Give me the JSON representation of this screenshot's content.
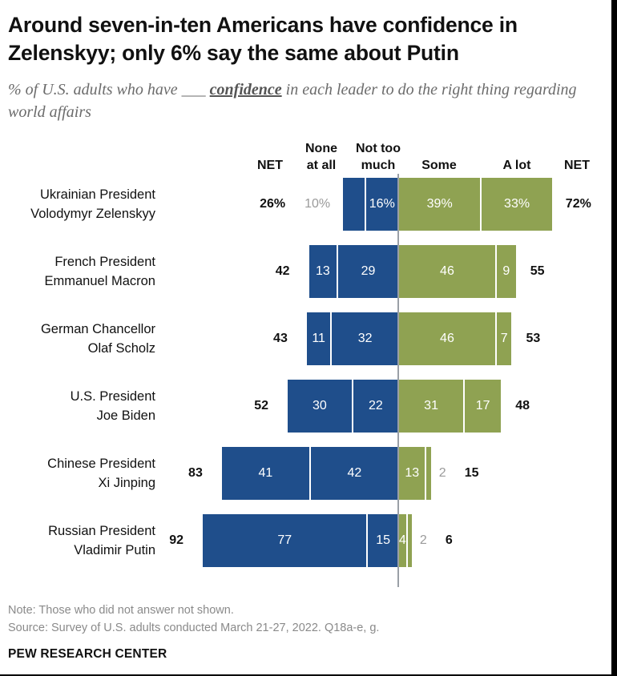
{
  "title": "Around seven-in-ten Americans have confidence in Zelenskyy; only 6% say the same about Putin",
  "subtitle_pre": "% of U.S. adults who have",
  "subtitle_blank": "___",
  "subtitle_conf": "confidence",
  "subtitle_post": "in each leader to do the right thing regarding world affairs",
  "headers": {
    "net_left": "NET",
    "none": "None at all",
    "not_too": "Not too much",
    "some": "Some",
    "a_lot": "A lot",
    "net_right": "NET"
  },
  "colors": {
    "negative": "#1f4e8b",
    "positive": "#8fa252"
  },
  "chart_data": {
    "type": "bar",
    "orientation": "horizontal-diverging",
    "categories": [
      "Ukrainian President Volodymyr Zelenskyy",
      "French President Emmanuel Macron",
      "German Chancellor Olaf Scholz",
      "U.S. President Joe Biden",
      "Chinese President Xi Jinping",
      "Russian President Vladimir Putin"
    ],
    "series": [
      {
        "name": "None at all",
        "values": [
          10,
          13,
          11,
          30,
          41,
          77
        ]
      },
      {
        "name": "Not too much",
        "values": [
          16,
          29,
          32,
          22,
          42,
          15
        ]
      },
      {
        "name": "Some",
        "values": [
          39,
          46,
          46,
          31,
          13,
          4
        ]
      },
      {
        "name": "A lot",
        "values": [
          33,
          9,
          7,
          17,
          2,
          2
        ]
      }
    ],
    "net_negative": [
      26,
      42,
      43,
      52,
      83,
      92
    ],
    "net_positive": [
      72,
      55,
      53,
      48,
      15,
      6
    ]
  },
  "rows": [
    {
      "line1": "Ukrainian President",
      "line2": "Volodymyr Zelenskyy",
      "net_left": "26%",
      "none": "10%",
      "not_too": "16%",
      "some": "39%",
      "a_lot": "33%",
      "net_right": "72%"
    },
    {
      "line1": "French President",
      "line2": "Emmanuel Macron",
      "net_left": "42",
      "none": "13",
      "not_too": "29",
      "some": "46",
      "a_lot": "9",
      "net_right": "55"
    },
    {
      "line1": "German Chancellor",
      "line2": "Olaf Scholz",
      "net_left": "43",
      "none": "11",
      "not_too": "32",
      "some": "46",
      "a_lot": "7",
      "net_right": "53"
    },
    {
      "line1": "U.S. President",
      "line2": "Joe Biden",
      "net_left": "52",
      "none": "30",
      "not_too": "22",
      "some": "31",
      "a_lot": "17",
      "net_right": "48"
    },
    {
      "line1": "Chinese President",
      "line2": "Xi Jinping",
      "net_left": "83",
      "none": "41",
      "not_too": "42",
      "some": "13",
      "a_lot": "2",
      "net_right": "15"
    },
    {
      "line1": "Russian President",
      "line2": "Vladimir Putin",
      "net_left": "92",
      "none": "77",
      "not_too": "15",
      "some": "4",
      "a_lot": "2",
      "net_right": "6"
    }
  ],
  "note": "Note: Those who did not answer not shown.",
  "source": "Source: Survey of U.S. adults conducted March 21-27, 2022. Q18a-e, g.",
  "brand": "PEW RESEARCH CENTER"
}
